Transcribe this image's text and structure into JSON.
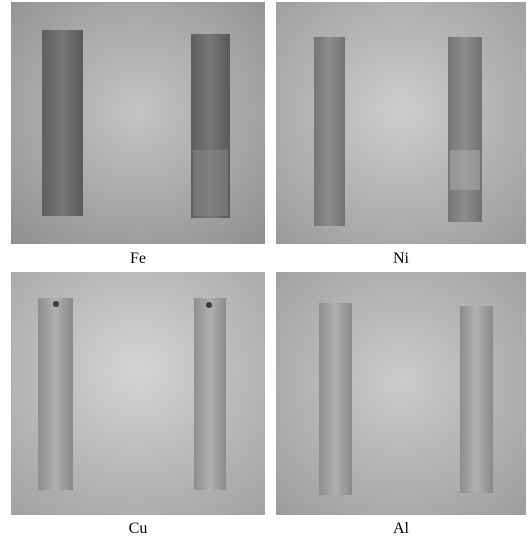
{
  "panels": [
    {
      "label": "Fe"
    },
    {
      "label": "Ni"
    },
    {
      "label": "Cu"
    },
    {
      "label": "Al"
    }
  ]
}
